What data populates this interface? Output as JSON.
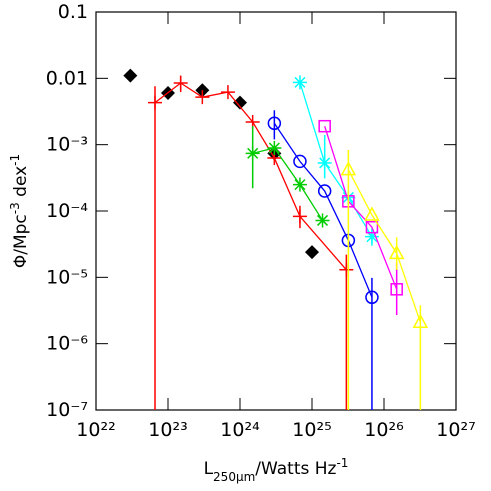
{
  "chart_data": {
    "type": "scatter",
    "xlabel": {
      "main": "L",
      "sub": "250μm",
      "rest": "/Watts Hz",
      "sup": "-1"
    },
    "ylabel": {
      "main": "Φ/Mpc",
      "sup1": "-3",
      "mid": " dex",
      "sup2": "-1"
    },
    "xscale": "log",
    "yscale": "log",
    "xlim": [
      1e+22,
      1e+27
    ],
    "ylim": [
      1e-07,
      0.1
    ],
    "xticks": [
      {
        "value": 1e+22,
        "label": "10²²"
      },
      {
        "value": 1e+23,
        "label": "10²³"
      },
      {
        "value": 1e+24,
        "label": "10²⁴"
      },
      {
        "value": 1e+25,
        "label": "10²⁵"
      },
      {
        "value": 1e+26,
        "label": "10²⁶"
      },
      {
        "value": 1e+27,
        "label": "10²⁷"
      }
    ],
    "yticks": [
      {
        "value": 1e-07,
        "label": "10⁻⁷"
      },
      {
        "value": 1e-06,
        "label": "10⁻⁶"
      },
      {
        "value": 1e-05,
        "label": "10⁻⁵"
      },
      {
        "value": 0.0001,
        "label": "10⁻⁴"
      },
      {
        "value": 0.001,
        "label": "10⁻³"
      },
      0.01,
      0.1
    ],
    "series": [
      {
        "color": "#000000",
        "marker": "diamond",
        "line": false,
        "x": [
          3e+22,
          1e+23,
          3e+23,
          1e+24,
          3e+24,
          1e+25
        ],
        "values": [
          0.011,
          0.006,
          0.0066,
          0.0043,
          0.00074,
          2.4e-05
        ],
        "lower": [
          null,
          null,
          null,
          null,
          null,
          null
        ],
        "upper": [
          null,
          null,
          null,
          null,
          null,
          null
        ]
      },
      {
        "color": "#ff0000",
        "marker": "plus",
        "line": true,
        "x": [
          6.6e+22,
          1.5e+23,
          3e+23,
          6.8e+23,
          1.5e+24,
          3e+24,
          6.8e+24,
          3e+25
        ],
        "values": [
          0.0043,
          0.0085,
          0.0052,
          0.0062,
          0.0022,
          0.00063,
          8.3e-05,
          1.3e-05
        ],
        "lower": [
          1e-08,
          0.0062,
          null,
          null,
          null,
          null,
          5.5e-05,
          1e-08
        ],
        "upper": [
          0.0076,
          0.011,
          null,
          null,
          null,
          null,
          0.00012,
          2.2e-05
        ]
      },
      {
        "color": "#00cc00",
        "marker": "star",
        "line": true,
        "x": [
          1.5e+24,
          3e+24,
          6.8e+24,
          1.4e+25
        ],
        "values": [
          0.00074,
          0.00089,
          0.00025,
          7.2e-05
        ],
        "lower": [
          0.00022,
          null,
          null,
          null
        ],
        "upper": [
          0.0019,
          null,
          null,
          null
        ]
      },
      {
        "color": "#0000ff",
        "marker": "circle",
        "line": true,
        "x": [
          3e+24,
          6.8e+24,
          1.5e+25,
          3.2e+25,
          6.8e+25
        ],
        "values": [
          0.0021,
          0.00056,
          0.0002,
          3.6e-05,
          5e-06
        ],
        "lower": [
          0.0012,
          null,
          null,
          null,
          1e-08
        ],
        "upper": [
          0.0033,
          null,
          null,
          null,
          9.8e-06
        ]
      },
      {
        "color": "#00ffff",
        "marker": "star",
        "line": true,
        "x": [
          6.8e+24,
          1.5e+25,
          3.2e+25,
          6.8e+25
        ],
        "values": [
          0.0087,
          0.00053,
          0.00016,
          4.1e-05
        ],
        "lower": [
          null,
          0.00031,
          null,
          3e-05
        ],
        "upper": [
          null,
          0.0014,
          null,
          5.5e-05
        ]
      },
      {
        "color": "#ff00ff",
        "marker": "square",
        "line": true,
        "x": [
          1.5e+25,
          3.2e+25,
          6.8e+25,
          1.5e+26
        ],
        "values": [
          0.0019,
          0.00014,
          5.7e-05,
          6.6e-06
        ],
        "lower": [
          null,
          null,
          null,
          2.7e-06
        ],
        "upper": [
          null,
          null,
          null,
          1.7e-05
        ]
      },
      {
        "color": "#ffff00",
        "marker": "triangle",
        "line": true,
        "x": [
          3.2e+25,
          6.8e+25,
          1.5e+26,
          3.2e+26
        ],
        "values": [
          0.00042,
          8.7e-05,
          2.3e-05,
          2.1e-06
        ],
        "lower": [
          1e-08,
          null,
          1.3e-05,
          1e-08
        ],
        "upper": [
          0.00083,
          null,
          4e-05,
          3.8e-06
        ]
      }
    ]
  }
}
